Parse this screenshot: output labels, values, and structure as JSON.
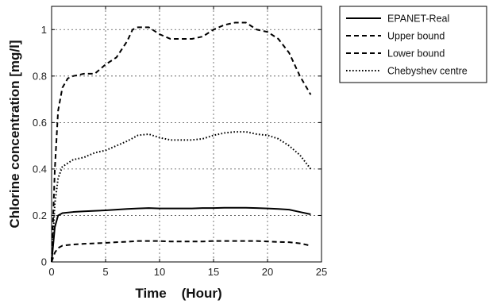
{
  "chart_data": {
    "type": "line",
    "xlabel": "Time    (Hour)",
    "ylabel": "Chlorine concentration [mg/l]",
    "xlim": [
      0,
      25
    ],
    "ylim": [
      0,
      1.1
    ],
    "xticks": [
      0,
      5,
      10,
      15,
      20,
      25
    ],
    "yticks": [
      0,
      0.2,
      0.4,
      0.6,
      0.8,
      1
    ],
    "grid": true,
    "legend_position": "outside-top-right",
    "series": [
      {
        "name": "EPANET-Real",
        "style": "solid",
        "color": "#000000",
        "x": [
          0,
          0.3,
          0.6,
          1,
          2,
          3,
          4,
          5,
          6,
          7,
          8,
          9,
          10,
          11,
          12,
          13,
          14,
          15,
          16,
          17,
          18,
          19,
          20,
          21,
          22,
          23,
          24
        ],
        "y": [
          0,
          0.15,
          0.2,
          0.21,
          0.215,
          0.218,
          0.22,
          0.222,
          0.225,
          0.228,
          0.23,
          0.232,
          0.23,
          0.23,
          0.23,
          0.23,
          0.232,
          0.232,
          0.233,
          0.233,
          0.233,
          0.232,
          0.23,
          0.228,
          0.225,
          0.215,
          0.205
        ]
      },
      {
        "name": "Upper bound",
        "style": "dashed",
        "color": "#000000",
        "x": [
          0,
          0.3,
          0.6,
          1,
          1.5,
          2,
          3,
          4,
          5,
          6,
          7,
          7.5,
          8,
          9,
          10,
          11,
          12,
          13,
          14,
          15,
          16,
          17,
          18,
          19,
          20,
          21,
          22,
          22.5,
          23,
          24
        ],
        "y": [
          0,
          0.4,
          0.65,
          0.75,
          0.79,
          0.8,
          0.81,
          0.81,
          0.85,
          0.88,
          0.95,
          1.0,
          1.01,
          1.01,
          0.98,
          0.96,
          0.96,
          0.96,
          0.97,
          1.0,
          1.02,
          1.03,
          1.03,
          1.0,
          0.99,
          0.96,
          0.9,
          0.85,
          0.8,
          0.72
        ]
      },
      {
        "name": "Lower bound",
        "style": "dashed",
        "color": "#000000",
        "x": [
          0,
          0.3,
          0.6,
          1,
          2,
          3,
          4,
          5,
          6,
          7,
          8,
          9,
          10,
          11,
          12,
          13,
          14,
          15,
          16,
          17,
          18,
          19,
          20,
          21,
          22,
          23,
          24
        ],
        "y": [
          0,
          0.04,
          0.06,
          0.07,
          0.075,
          0.078,
          0.08,
          0.082,
          0.085,
          0.087,
          0.09,
          0.09,
          0.09,
          0.088,
          0.088,
          0.088,
          0.088,
          0.09,
          0.09,
          0.09,
          0.09,
          0.09,
          0.088,
          0.086,
          0.085,
          0.08,
          0.07
        ]
      },
      {
        "name": "Chebyshev centre",
        "style": "dotted",
        "color": "#000000",
        "x": [
          0,
          0.3,
          0.6,
          1,
          2,
          3,
          4,
          5,
          6,
          7,
          8,
          9,
          10,
          11,
          12,
          13,
          14,
          15,
          16,
          17,
          18,
          19,
          20,
          21,
          22,
          23,
          24
        ],
        "y": [
          0,
          0.25,
          0.36,
          0.41,
          0.44,
          0.45,
          0.47,
          0.48,
          0.5,
          0.52,
          0.545,
          0.55,
          0.535,
          0.525,
          0.525,
          0.525,
          0.53,
          0.545,
          0.555,
          0.56,
          0.56,
          0.55,
          0.545,
          0.53,
          0.5,
          0.46,
          0.4
        ]
      }
    ]
  }
}
